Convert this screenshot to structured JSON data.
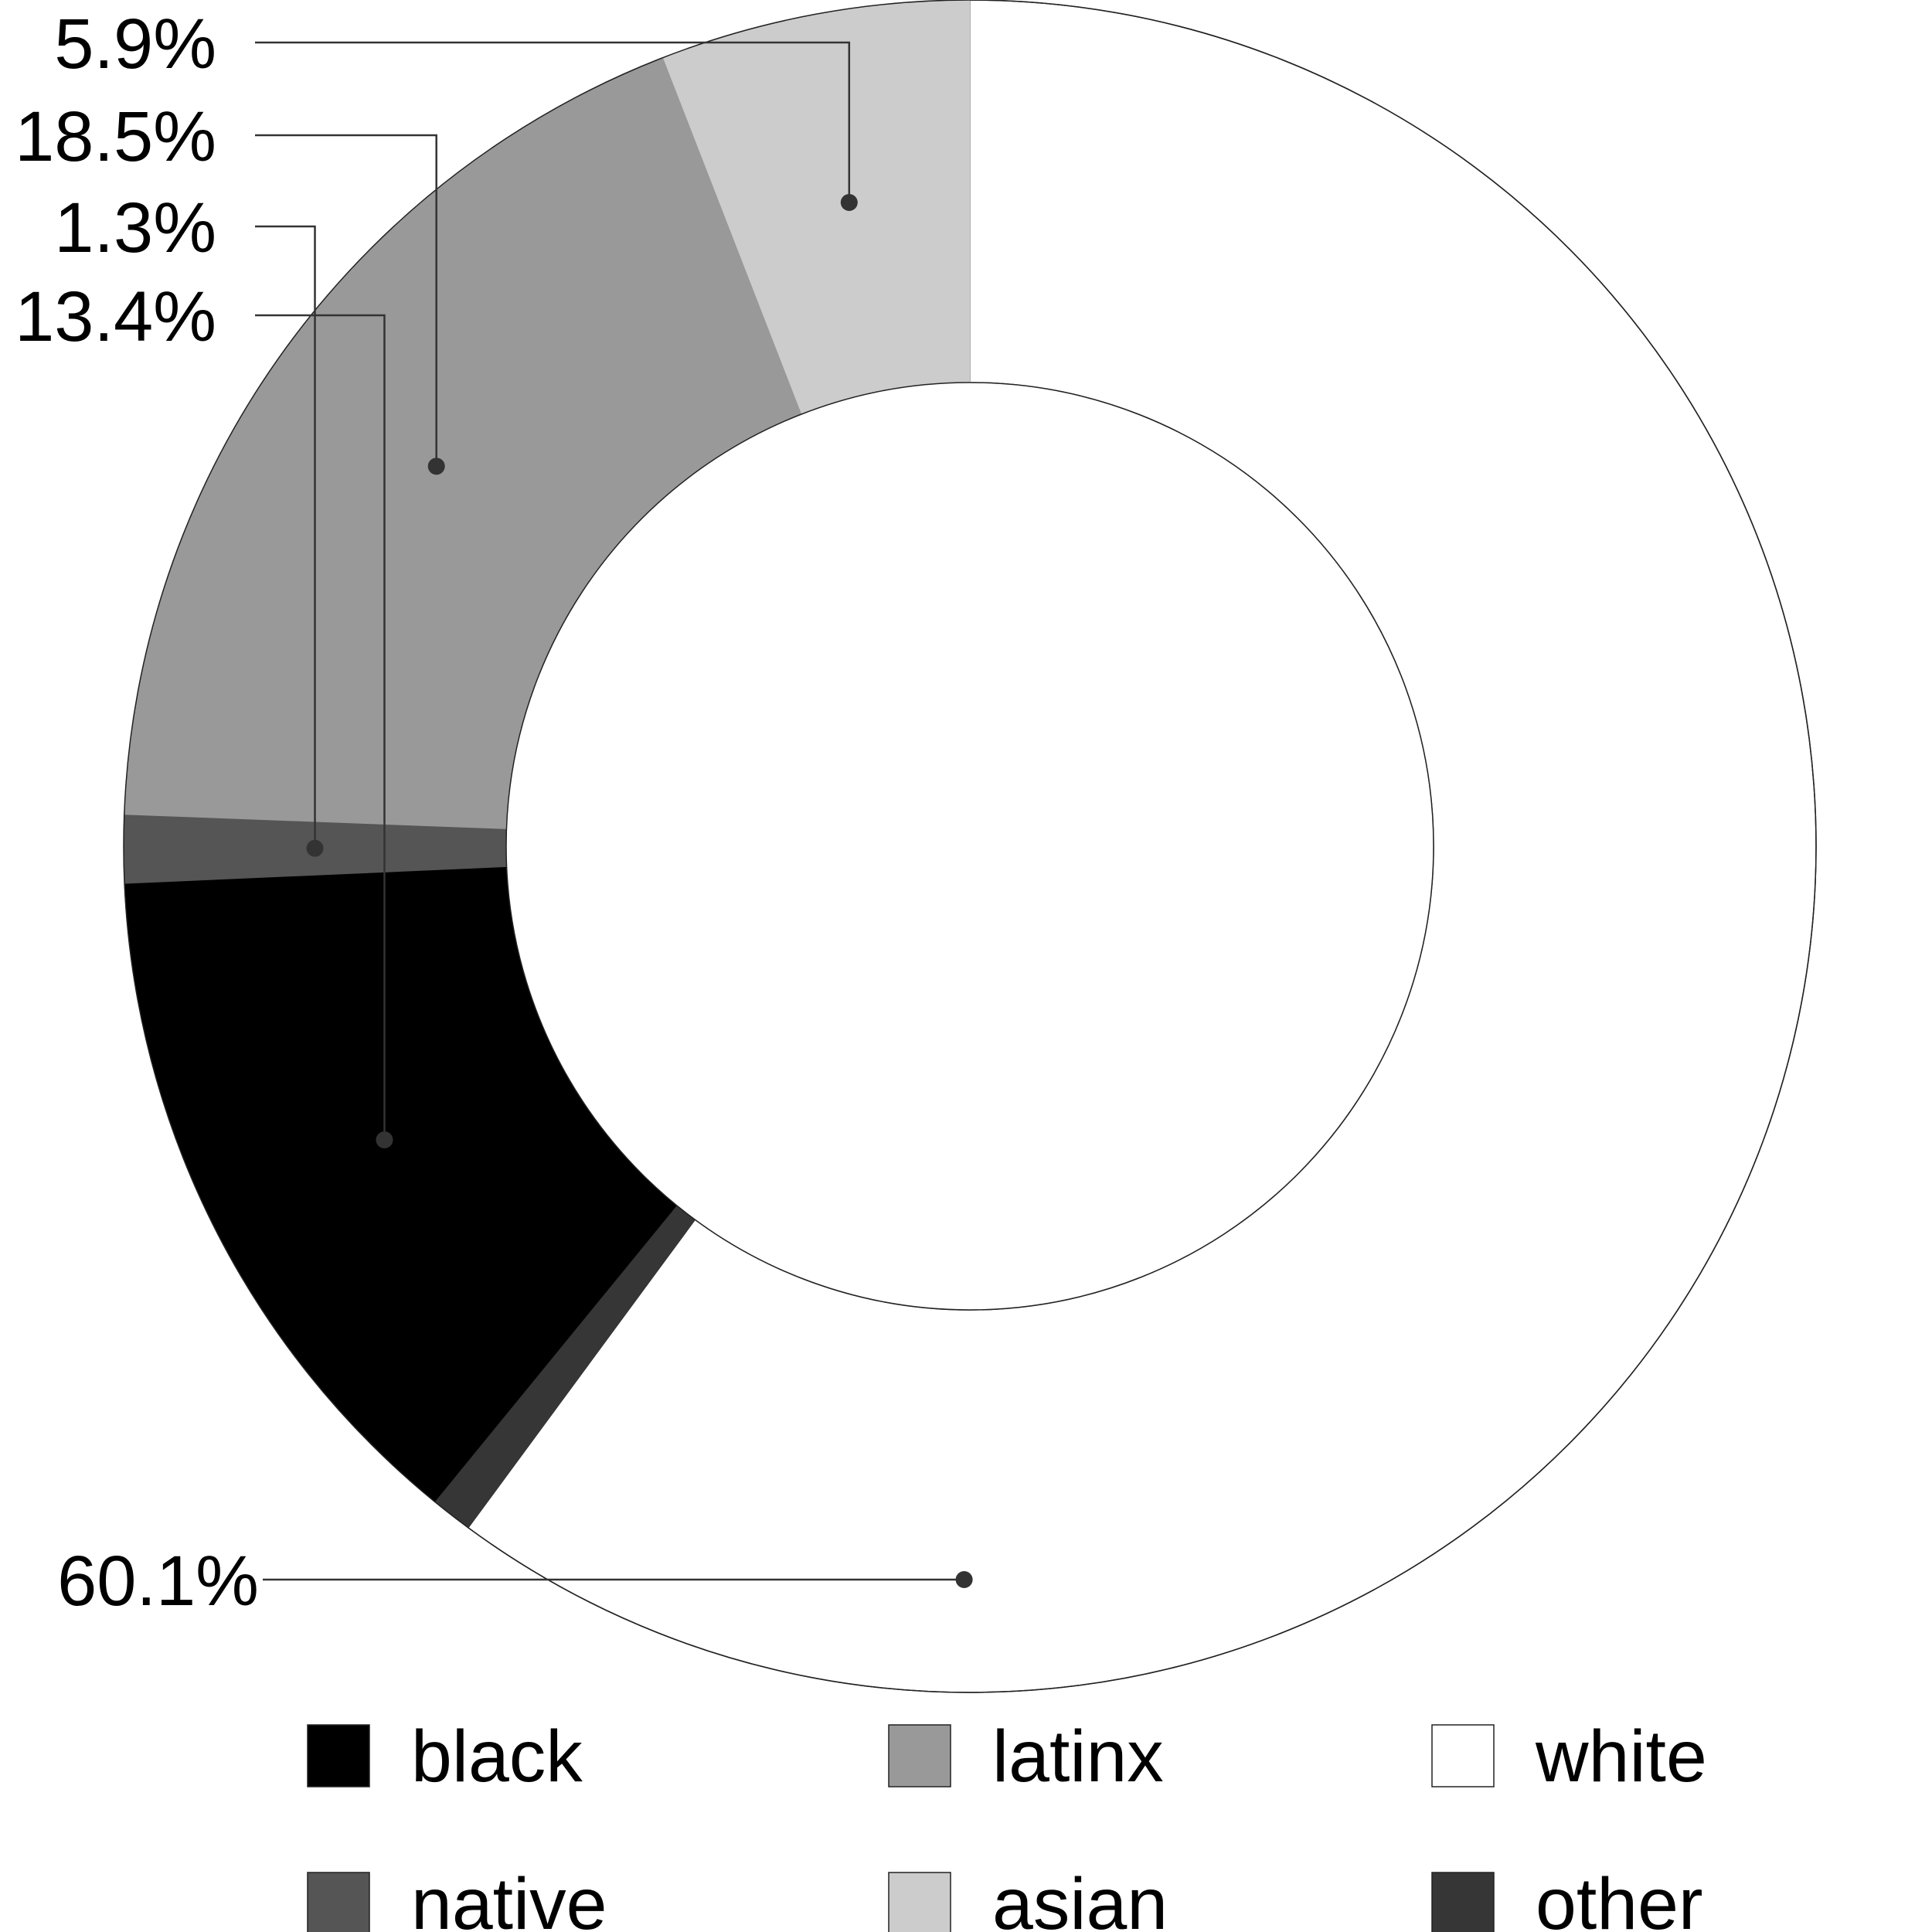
{
  "chart_data": {
    "type": "pie",
    "donut": true,
    "slices": [
      {
        "label": "white",
        "value": 60.1,
        "color": "#ffffff",
        "data_label": "60.1%"
      },
      {
        "label": "other",
        "value": 0.8,
        "color": "#363636",
        "data_label": ""
      },
      {
        "label": "black",
        "value": 13.4,
        "color": "#000000",
        "data_label": "13.4%"
      },
      {
        "label": "native",
        "value": 1.3,
        "color": "#555555",
        "data_label": "1.3%"
      },
      {
        "label": "latinx",
        "value": 18.5,
        "color": "#999999",
        "data_label": "18.5%"
      },
      {
        "label": "asian",
        "value": 5.9,
        "color": "#cccccc",
        "data_label": "5.9%"
      }
    ],
    "legend": {
      "placement": "bottom",
      "entries": [
        {
          "label": "black",
          "color": "#000000"
        },
        {
          "label": "latinx",
          "color": "#999999"
        },
        {
          "label": "white",
          "color": "#ffffff"
        },
        {
          "label": "native",
          "color": "#555555"
        },
        {
          "label": "asian",
          "color": "#cccccc"
        },
        {
          "label": "other",
          "color": "#363636"
        }
      ]
    }
  }
}
